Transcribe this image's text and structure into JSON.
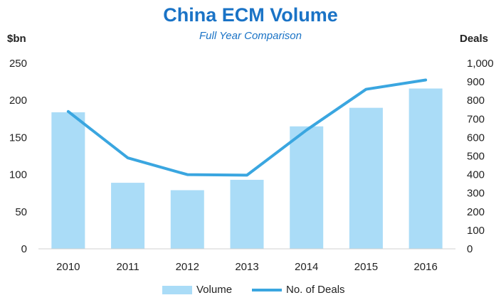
{
  "chart_data": {
    "type": "bar+line",
    "title": "China ECM Volume",
    "subtitle": "Full Year Comparison",
    "categories": [
      "2010",
      "2011",
      "2012",
      "2013",
      "2014",
      "2015",
      "2016"
    ],
    "series": [
      {
        "name": "Volume",
        "type": "bar",
        "axis": "left",
        "color": "#aadcf7",
        "values": [
          184,
          89,
          79,
          93,
          165,
          190,
          216
        ]
      },
      {
        "name": "No. of Deals",
        "type": "line",
        "axis": "right",
        "color": "#3aa6e0",
        "values": [
          740,
          490,
          400,
          397,
          640,
          860,
          910
        ]
      }
    ],
    "y_left": {
      "label": "$bn",
      "range": [
        0,
        250
      ],
      "ticks": [
        "0",
        "50",
        "100",
        "150",
        "200",
        "250"
      ]
    },
    "y_right": {
      "label": "Deals",
      "range": [
        0,
        1000
      ],
      "ticks": [
        "0",
        "100",
        "200",
        "300",
        "400",
        "500",
        "600",
        "700",
        "800",
        "900",
        "1,000"
      ]
    },
    "grid": false,
    "legend": "bottom"
  }
}
